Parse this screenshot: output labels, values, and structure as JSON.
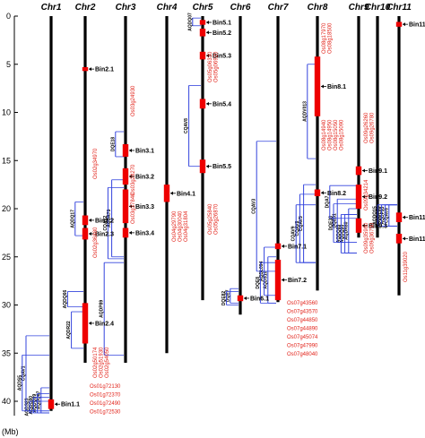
{
  "axis_label": "(Mb)",
  "ticks": [
    "0",
    "5",
    "10",
    "15",
    "20",
    "25",
    "30",
    "35",
    "40"
  ],
  "chromosomes": [
    {
      "label": "Chr1",
      "length": 41
    },
    {
      "label": "Chr2",
      "length": 36
    },
    {
      "label": "Chr3",
      "length": 36
    },
    {
      "label": "Chr4",
      "length": 35
    },
    {
      "label": "Chr5",
      "length": 29.5
    },
    {
      "label": "Chr6",
      "length": 31
    },
    {
      "label": "Chr7",
      "length": 29.7
    },
    {
      "label": "Chr8",
      "length": 28.5
    },
    {
      "label": "Chr9",
      "length": 23
    },
    {
      "label": "Chr10",
      "length": 23
    },
    {
      "label": "Chr11",
      "length": 29
    }
  ],
  "bins": [
    {
      "label": "Bin1.1",
      "chr": 0,
      "start": 39.8,
      "end": 40.8
    },
    {
      "label": "Bin2.1",
      "chr": 1,
      "start": 5.3,
      "end": 5.7
    },
    {
      "label": "Bin2.2",
      "chr": 1,
      "start": 20.7,
      "end": 21.7
    },
    {
      "label": "Bin2.3",
      "chr": 1,
      "start": 22.0,
      "end": 23.2
    },
    {
      "label": "Bin2.4",
      "chr": 1,
      "start": 29.8,
      "end": 34.0
    },
    {
      "label": "Bin3.1",
      "chr": 2,
      "start": 13.3,
      "end": 14.6
    },
    {
      "label": "Bin3.2",
      "chr": 2,
      "start": 15.8,
      "end": 17.5
    },
    {
      "label": "Bin3.3",
      "chr": 2,
      "start": 18.0,
      "end": 21.5
    },
    {
      "label": "Bin3.4",
      "chr": 2,
      "start": 22.0,
      "end": 23.0
    },
    {
      "label": "Bin4.1",
      "chr": 3,
      "start": 17.5,
      "end": 19.3
    },
    {
      "label": "Bin5.1",
      "chr": 4,
      "start": 0.4,
      "end": 0.9
    },
    {
      "label": "Bin5.2",
      "chr": 4,
      "start": 1.3,
      "end": 2.1
    },
    {
      "label": "Bin5.3",
      "chr": 4,
      "start": 3.7,
      "end": 4.5
    },
    {
      "label": "Bin5.4",
      "chr": 4,
      "start": 8.6,
      "end": 9.6
    },
    {
      "label": "Bin5.5",
      "chr": 4,
      "start": 14.9,
      "end": 16.3
    },
    {
      "label": "Bin6.1",
      "chr": 5,
      "start": 29.0,
      "end": 29.6
    },
    {
      "label": "Bin7.1",
      "chr": 6,
      "start": 23.6,
      "end": 24.2
    },
    {
      "label": "Bin7.2",
      "chr": 6,
      "start": 25.3,
      "end": 29.5
    },
    {
      "label": "Bin8.1",
      "chr": 7,
      "start": 4.2,
      "end": 10.4
    },
    {
      "label": "Bin8.2",
      "chr": 7,
      "start": 18.0,
      "end": 18.7
    },
    {
      "label": "Bin9.1",
      "chr": 8,
      "start": 15.6,
      "end": 16.5
    },
    {
      "label": "Bin9.2",
      "chr": 8,
      "start": 17.5,
      "end": 20.0
    },
    {
      "label": "Bin9.3",
      "chr": 8,
      "start": 21.0,
      "end": 22.5
    },
    {
      "label": "Bin11.1",
      "chr": 10,
      "start": 0.6,
      "end": 1.1
    },
    {
      "label": "Bin11.2",
      "chr": 10,
      "start": 20.4,
      "end": 21.4
    },
    {
      "label": "Bin11.3",
      "chr": 10,
      "start": 22.6,
      "end": 23.6
    }
  ],
  "gene_groups": [
    {
      "genes": [
        "Os01g72130",
        "Os01g72370",
        "Os01g72490",
        "Os01g72530"
      ],
      "anchor_bin": 0
    },
    {
      "genes": [
        "Os02g34970"
      ],
      "anchor_bin": 2
    },
    {
      "genes": [
        "Os02g36880"
      ],
      "anchor_bin": 3
    },
    {
      "genes": [
        "Os02g50174",
        "Os02g51930",
        "Os02g54050"
      ],
      "anchor_bin": 4
    },
    {
      "genes": [
        "Os03g24930"
      ],
      "anchor_bin": 5
    },
    {
      "genes": [
        "Os03g28270"
      ],
      "anchor_bin": 6
    },
    {
      "genes": [
        "Os03g37840"
      ],
      "anchor_bin": 7
    },
    {
      "genes": [
        "Os04g29790",
        "Os04g30040",
        "Os04g31804"
      ],
      "anchor_bin": 9
    },
    {
      "genes": [
        "Os05g06330",
        "Os05g06920"
      ],
      "anchor_bin": 12
    },
    {
      "genes": [
        "Os05g25840",
        "Os05g26870"
      ],
      "anchor_bin": 14
    },
    {
      "genes": [
        "Os07g43560",
        "Os07g43570",
        "Os07g44850",
        "Os07g44890",
        "Os07g45074",
        "Os07g47990",
        "Os07g48040"
      ],
      "anchor_bin": 17
    },
    {
      "genes": [
        "Os08g17970",
        "Os08g18500"
      ],
      "anchor_bin": 18
    },
    {
      "genes": [
        "Os08g14940",
        "Os08g14950",
        "Os08g15050",
        "Os08g15090"
      ],
      "anchor_bin": 18
    },
    {
      "genes": [
        "Os09g26260",
        "Os09g26780"
      ],
      "anchor_bin": 20
    },
    {
      "genes": [
        "Os09g34214"
      ],
      "anchor_bin": 21
    },
    {
      "genes": [
        "Os09g35980",
        "Os09g36750"
      ],
      "anchor_bin": 22
    },
    {
      "genes": [
        "Os11g39020"
      ],
      "anchor_bin": 25
    }
  ],
  "qtls": [
    {
      "label": "AQDQ67",
      "chr": 0,
      "start": 38.6,
      "end": 41.2
    },
    {
      "label": "AQDQ09",
      "chr": 0,
      "start": 39.2,
      "end": 41.2
    },
    {
      "label": "AQDQ80",
      "chr": 0,
      "start": 39.6,
      "end": 41.2
    },
    {
      "label": "AQDS23",
      "chr": 0,
      "start": 40.0,
      "end": 41.2
    },
    {
      "label": "CQAV1",
      "chr": 0,
      "start": 33.2,
      "end": 41.0
    },
    {
      "label": "AQDS5",
      "chr": 0,
      "start": 35.2,
      "end": 41.0
    },
    {
      "label": "AQDQ17",
      "chr": 1,
      "start": 19.3,
      "end": 22.8
    },
    {
      "label": "AQDR22",
      "chr": 1,
      "start": 30.7,
      "end": 34.5
    },
    {
      "label": "AQDQ66",
      "chr": 1,
      "start": 28.6,
      "end": 30.2
    },
    {
      "label": "DQE18",
      "chr": 2,
      "start": 12.0,
      "end": 14.6
    },
    {
      "label": "AQDR79",
      "chr": 2,
      "start": 17.0,
      "end": 25.0
    },
    {
      "label": "CQAV2",
      "chr": 2,
      "start": 17.8,
      "end": 25.2
    },
    {
      "label": "AQDP89",
      "chr": 2,
      "start": 25.6,
      "end": 35.2
    },
    {
      "label": "AQDQ07",
      "chr": 4,
      "start": 0.2,
      "end": 1.0
    },
    {
      "label": "CQAV8",
      "chr": 4,
      "start": 7.2,
      "end": 15.6
    },
    {
      "label": "DQE7",
      "chr": 5,
      "start": 28.3,
      "end": 29.8
    },
    {
      "label": "DQE82",
      "chr": 5,
      "start": 28.6,
      "end": 30.0
    },
    {
      "label": "AQDS10",
      "chr": 6,
      "start": 25.0,
      "end": 29.8
    },
    {
      "label": "AQDL094",
      "chr": 6,
      "start": 24.0,
      "end": 29.0
    },
    {
      "label": "DQE8",
      "chr": 6,
      "start": 25.6,
      "end": 29.8
    },
    {
      "label": "CQAV3",
      "chr": 6,
      "start": 13.0,
      "end": 26.5
    },
    {
      "label": "AQDV013",
      "chr": 7,
      "start": 5.0,
      "end": 14.8
    },
    {
      "label": "CQAV5",
      "chr": 7,
      "start": 17.5,
      "end": 25.6
    },
    {
      "label": "CQAV8",
      "chr": 7,
      "start": 18.5,
      "end": 25.6
    },
    {
      "label": "CQAV9",
      "chr": 7,
      "start": 19.6,
      "end": 25.6
    },
    {
      "label": "AQDR80",
      "chr": 8,
      "start": 20.0,
      "end": 24.6
    },
    {
      "label": "AQDQ93",
      "chr": 8,
      "start": 20.6,
      "end": 24.6
    },
    {
      "label": "AQDQ85",
      "chr": 8,
      "start": 20.6,
      "end": 24.6
    },
    {
      "label": "DQE31",
      "chr": 8,
      "start": 19.0,
      "end": 23.5
    },
    {
      "label": "DQE33",
      "chr": 8,
      "start": 19.5,
      "end": 23.5
    },
    {
      "label": "DQA7",
      "chr": 8,
      "start": 17.6,
      "end": 21.0
    },
    {
      "label": "CQAV8",
      "chr": 10,
      "start": 19.6,
      "end": 21.8
    },
    {
      "label": "AQDP93",
      "chr": 10,
      "start": 19.6,
      "end": 21.8
    },
    {
      "label": "AQDP85",
      "chr": 10,
      "start": 19.6,
      "end": 21.8
    },
    {
      "label": "AQDQ15",
      "chr": 10,
      "start": 19.6,
      "end": 21.8
    }
  ],
  "colors": {
    "chromosome": "#000000",
    "bin": "#ee0000",
    "qtl": "#3344dd",
    "gene_text": "#e2231a",
    "arrow": "#000000"
  }
}
